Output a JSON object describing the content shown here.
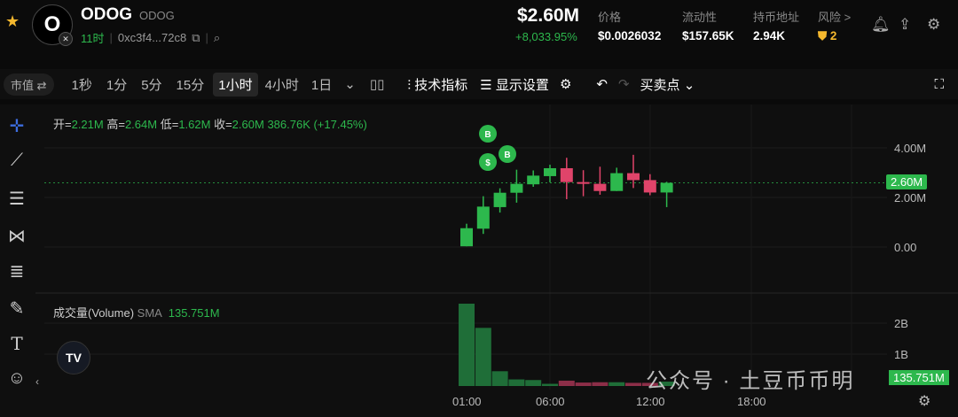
{
  "header": {
    "name": "ODOG",
    "symbol": "ODOG",
    "logo_letter": "O",
    "age": "11时",
    "address": "0xc3f4...72c8",
    "market_cap": "$2.60M",
    "change": "+8,033.95%",
    "stats": [
      {
        "label": "价格",
        "value": "$0.0026032"
      },
      {
        "label": "流动性",
        "value": "$157.65K"
      },
      {
        "label": "持币地址",
        "value": "2.94K"
      },
      {
        "label": "风险 >",
        "value": "2"
      }
    ]
  },
  "toolbar": {
    "mode": "市值 ⇄",
    "intervals": [
      "1秒",
      "1分",
      "5分",
      "15分",
      "1小时",
      "4小时",
      "1日"
    ],
    "active_interval": "1小时",
    "indicators": "技术指标",
    "display": "显示设置",
    "buy_sell": "买卖点"
  },
  "legend": {
    "open_label": "开=",
    "open": "2.21M",
    "high_label": "高=",
    "high": "2.64M",
    "low_label": "低=",
    "low": "1.62M",
    "close_label": "收=",
    "close": "2.60M",
    "change": "386.76K (+17.45%)"
  },
  "volume_legend": {
    "label": "成交量(Volume)",
    "sma": "SMA",
    "value": "135.751M"
  },
  "watermark": "公众号 · 土豆币币明",
  "colors": {
    "up": "#2db84d",
    "down": "#e0446a",
    "accent": "#f5b82e"
  },
  "chart_data": {
    "type": "candlestick",
    "x": [
      "01:00",
      "02:00",
      "03:00",
      "04:00",
      "05:00",
      "06:00",
      "07:00",
      "08:00",
      "09:00",
      "10:00",
      "11:00",
      "12:00",
      "13:00"
    ],
    "open": [
      0.04,
      0.75,
      1.62,
      2.2,
      2.54,
      2.87,
      3.19,
      2.63,
      2.56,
      2.27,
      2.99,
      2.71,
      2.21
    ],
    "high": [
      0.95,
      2.06,
      2.38,
      3.13,
      3.1,
      3.33,
      3.61,
      3.11,
      3.25,
      3.21,
      3.73,
      2.95,
      2.64
    ],
    "low": [
      0.04,
      0.54,
      1.4,
      1.8,
      2.44,
      2.62,
      1.94,
      2.06,
      2.12,
      2.27,
      2.39,
      2.1,
      1.62
    ],
    "close": [
      0.77,
      1.64,
      2.2,
      2.56,
      2.89,
      3.19,
      2.63,
      2.56,
      2.27,
      2.99,
      2.71,
      2.21,
      2.6
    ],
    "unit": "M",
    "volume": [
      2.62,
      1.85,
      0.47,
      0.21,
      0.19,
      0.07,
      0.17,
      0.11,
      0.12,
      0.12,
      0.1,
      0.1,
      0.14
    ],
    "volume_unit": "B",
    "y_ticks": [
      "4.00M",
      "2.00M",
      "0.00"
    ],
    "last_price": "2.60M",
    "volume_ticks": [
      "2B",
      "1B"
    ],
    "volume_last": "135.751M",
    "x_ticks": [
      "01:00",
      "06:00",
      "12:00",
      "18:00"
    ],
    "markers": [
      "B",
      "B",
      "$"
    ]
  }
}
